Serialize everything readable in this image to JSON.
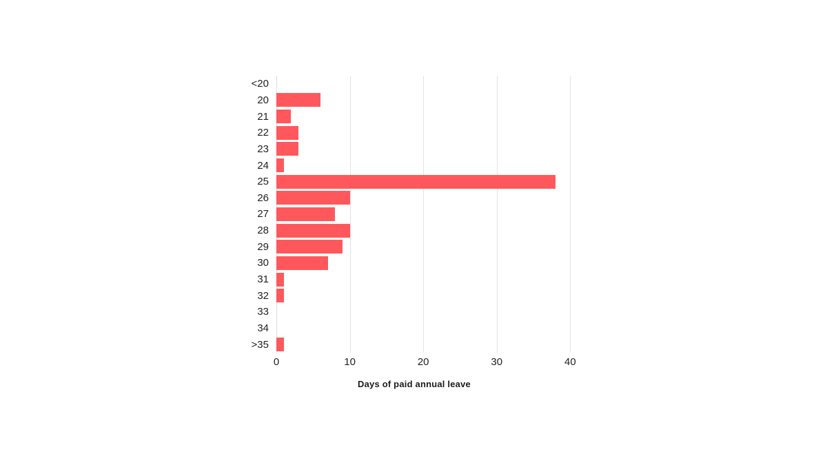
{
  "chart_data": {
    "type": "bar",
    "orientation": "horizontal",
    "title": "",
    "xlabel": "Days of paid annual leave",
    "ylabel": "",
    "categories": [
      "<20",
      "20",
      "21",
      "22",
      "23",
      "24",
      "25",
      "26",
      "27",
      "28",
      "29",
      "30",
      "31",
      "32",
      "33",
      "34",
      ">35"
    ],
    "values": [
      0,
      6,
      2,
      3,
      3,
      1,
      38,
      10,
      8,
      10,
      9,
      7,
      1,
      1,
      0,
      0,
      1
    ],
    "xticks": [
      0,
      10,
      20,
      30,
      40
    ],
    "xtick_labels": [
      "0",
      "10",
      "20",
      "30",
      "40"
    ],
    "xlim": [
      0,
      44
    ],
    "grid": "vertical",
    "legend": "none",
    "bar_color": "#fe585c",
    "gridline_color": "#e3e3e3",
    "text_color": "#212121"
  }
}
